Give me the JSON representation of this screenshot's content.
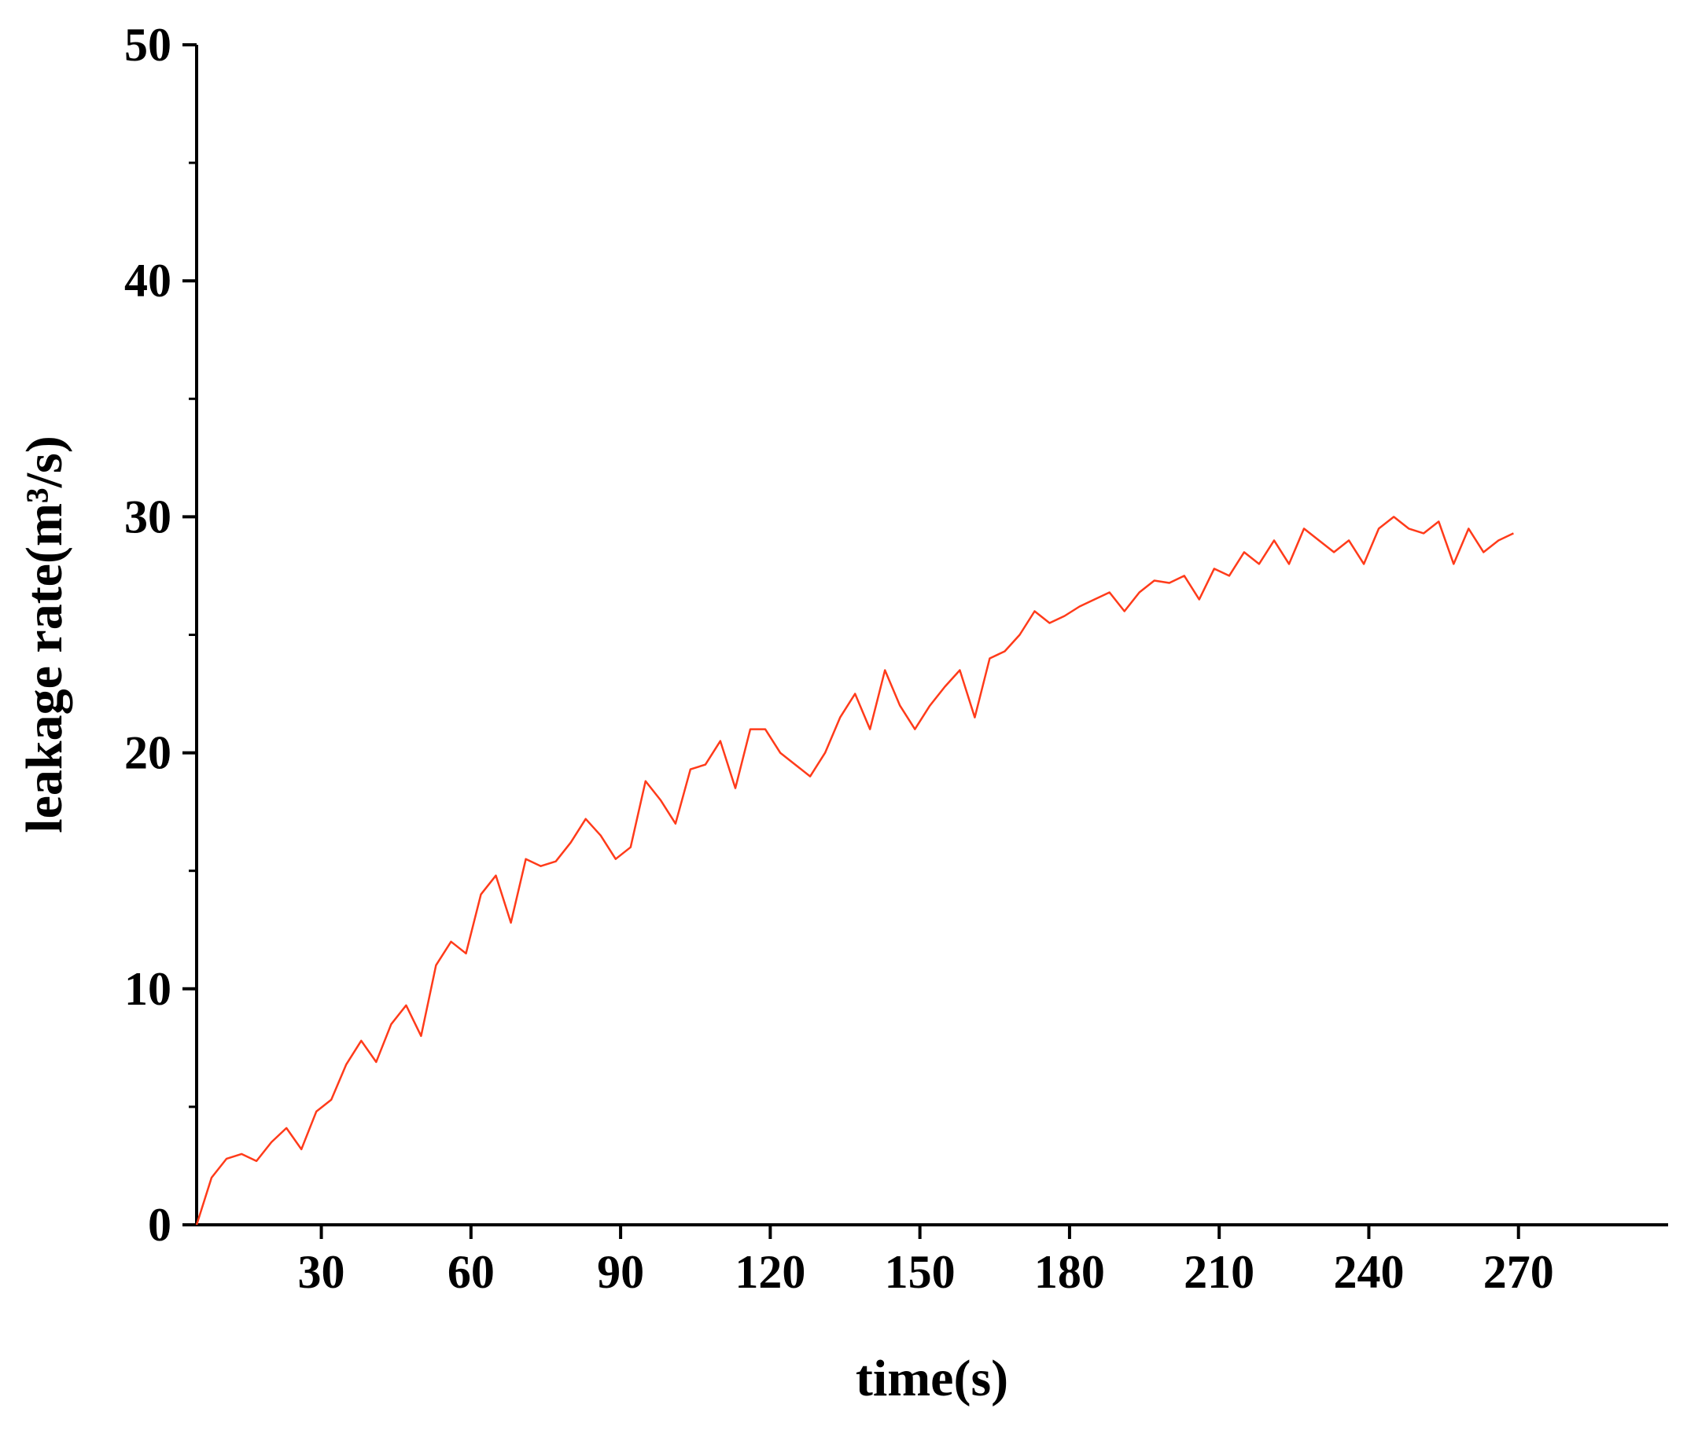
{
  "chart_data": {
    "type": "line",
    "x_label": "time(s)",
    "y_label": "leakage rate(m³/s)",
    "xlim": [
      5,
      300
    ],
    "ylim": [
      0,
      50
    ],
    "xticks": [
      30,
      60,
      90,
      120,
      150,
      180,
      210,
      240,
      270
    ],
    "yticks": [
      0,
      10,
      20,
      30,
      40,
      50
    ],
    "grid": false,
    "series": [
      {
        "name": "leakage rate",
        "color": "#ff3b1a",
        "x": [
          5,
          8,
          11,
          14,
          17,
          20,
          23,
          26,
          29,
          32,
          35,
          38,
          41,
          44,
          47,
          50,
          53,
          56,
          59,
          62,
          65,
          68,
          71,
          74,
          77,
          80,
          83,
          86,
          89,
          92,
          95,
          98,
          101,
          104,
          107,
          110,
          113,
          116,
          119,
          122,
          125,
          128,
          131,
          134,
          137,
          140,
          143,
          146,
          149,
          152,
          155,
          158,
          161,
          164,
          167,
          170,
          173,
          176,
          179,
          182,
          185,
          188,
          191,
          194,
          197,
          200,
          203,
          206,
          209,
          212,
          215,
          218,
          221,
          224,
          227,
          230,
          233,
          236,
          239,
          242,
          245,
          248,
          251,
          254,
          257,
          260,
          263,
          266,
          269
        ],
        "values": [
          0,
          2,
          2.8,
          3,
          2.7,
          3.5,
          4.1,
          3.2,
          4.8,
          5.3,
          6.8,
          7.8,
          6.9,
          8.5,
          9.3,
          8,
          11,
          12,
          11.5,
          14,
          14.8,
          12.8,
          15.5,
          15.2,
          15.4,
          16.2,
          17.2,
          16.5,
          15.5,
          16,
          18.8,
          18,
          17,
          19.3,
          19.5,
          20.5,
          18.5,
          21,
          21,
          20,
          19.5,
          19,
          20,
          21.5,
          22.5,
          21,
          23.5,
          22,
          21,
          22,
          22.8,
          23.5,
          21.5,
          24,
          24.3,
          25,
          26,
          25.5,
          25.8,
          26.2,
          26.5,
          26.8,
          26,
          26.8,
          27.3,
          27.2,
          27.5,
          26.5,
          27.8,
          27.5,
          28.5,
          28,
          29,
          28,
          29.5,
          29,
          28.5,
          29,
          28,
          29.5,
          30,
          29.5,
          29.3,
          29.8,
          28,
          29.5,
          28.5,
          29,
          29.3
        ]
      }
    ]
  }
}
